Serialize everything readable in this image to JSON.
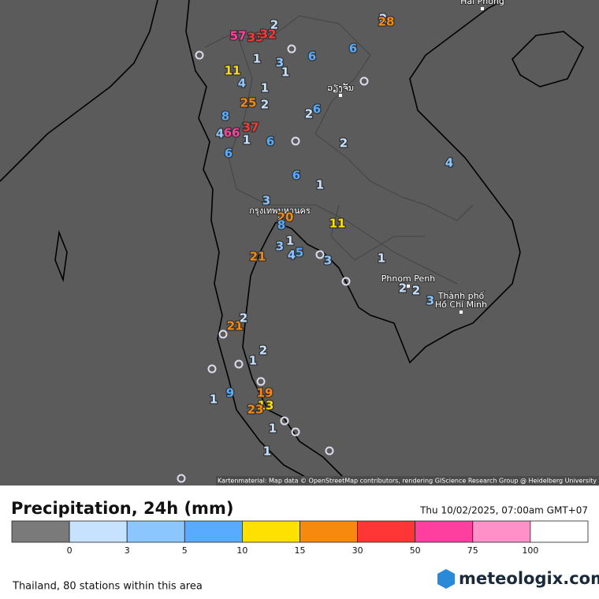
{
  "map": {
    "cities": [
      "ວຽງຈັນ",
      "กรุงเทพมหานคร",
      "Phnom Penh",
      "Thành phố",
      "Hồ Chí Minh",
      "Hải Phòng"
    ],
    "stations": [
      57,
      33,
      32,
      2,
      2,
      28,
      1,
      3,
      1,
      6,
      6,
      11,
      4,
      1,
      25,
      2,
      8,
      2,
      6,
      37,
      66,
      4,
      1,
      6,
      2,
      6,
      4,
      6,
      1,
      3,
      20,
      11,
      8,
      1,
      3,
      4,
      5,
      3,
      21,
      1,
      2,
      2,
      3,
      21,
      2,
      2,
      1,
      19,
      9,
      1,
      13,
      23,
      1,
      1
    ],
    "attribution": "Kartenmaterial: Map data © OpenStreetMap contributors, rendering GIScience Research Group @ Heidelberg University"
  },
  "legend": {
    "title": "Precipitation, 24h (mm)",
    "date": "Thu 10/02/2025, 07:00am GMT+07",
    "ticks": [
      0,
      3,
      5,
      10,
      15,
      30,
      50,
      75,
      100
    ],
    "colors": [
      "#7a7a7a",
      "#c6e2ff",
      "#8cc6ff",
      "#58abff",
      "#ffe100",
      "#f7890f",
      "#ff3636",
      "#ff3f9f",
      "#ff90c8",
      "#ffffff"
    ]
  },
  "footer": {
    "info": "Thailand, 80 stations within this area",
    "logo": "meteologix.com"
  }
}
